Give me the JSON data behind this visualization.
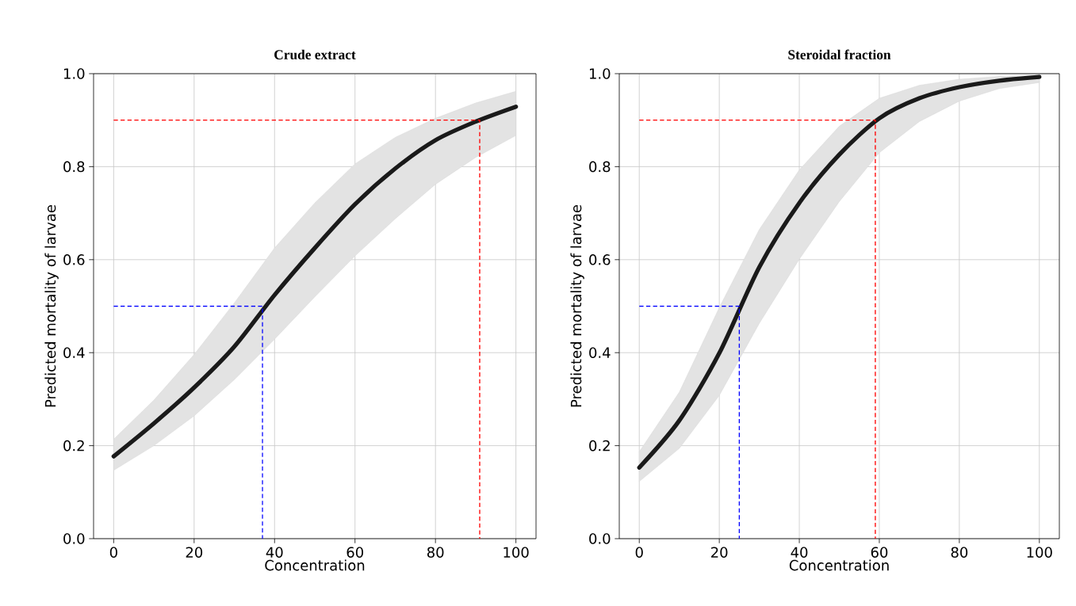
{
  "chart_data": [
    {
      "type": "line",
      "title": "Crude extract",
      "xlabel": "Concentration",
      "ylabel": "Predicted mortality of larvae",
      "xlim": [
        -5,
        105
      ],
      "ylim": [
        0,
        1
      ],
      "xticks": [
        0,
        20,
        40,
        60,
        80,
        100
      ],
      "yticks": [
        {
          "value": 0,
          "label": "0.0"
        },
        {
          "value": 0.2,
          "label": "0.2"
        },
        {
          "value": 0.4,
          "label": "0.4"
        },
        {
          "value": 0.6,
          "label": "0.6"
        },
        {
          "value": 0.8,
          "label": "0.8"
        },
        {
          "value": 1,
          "label": "1.0"
        }
      ],
      "grid": true,
      "marker": "none",
      "series": [
        {
          "color": "#1a1a1a",
          "x": [
            0,
            10,
            20,
            30,
            40,
            50,
            60,
            70,
            80,
            90,
            100
          ],
          "values": [
            0.177,
            0.248,
            0.325,
            0.413,
            0.524,
            0.625,
            0.719,
            0.796,
            0.857,
            0.897,
            0.929
          ],
          "lower": [
            0.147,
            0.2,
            0.264,
            0.342,
            0.429,
            0.52,
            0.608,
            0.688,
            0.762,
            0.82,
            0.867
          ],
          "upper": [
            0.214,
            0.298,
            0.396,
            0.507,
            0.625,
            0.722,
            0.806,
            0.863,
            0.904,
            0.937,
            0.962
          ]
        },
        {
          "color": "#0000ff",
          "line_style": "dashed",
          "x": [
            0,
            37,
            37
          ],
          "values": [
            0.5,
            0.5,
            0
          ]
        },
        {
          "color": "#ff0000",
          "line_style": "dashed",
          "x": [
            0,
            91,
            91
          ],
          "values": [
            0.9,
            0.9,
            0
          ]
        }
      ]
    },
    {
      "type": "line",
      "title": "Steroidal fraction",
      "xlabel": "Concentration",
      "ylabel": "Predicted mortality of larvae",
      "xlim": [
        -5,
        105
      ],
      "ylim": [
        0,
        1
      ],
      "xticks": [
        0,
        20,
        40,
        60,
        80,
        100
      ],
      "yticks": [
        {
          "value": 0,
          "label": "0.0"
        },
        {
          "value": 0.2,
          "label": "0.2"
        },
        {
          "value": 0.4,
          "label": "0.4"
        },
        {
          "value": 0.6,
          "label": "0.6"
        },
        {
          "value": 0.8,
          "label": "0.8"
        },
        {
          "value": 1,
          "label": "1.0"
        }
      ],
      "grid": true,
      "marker": "none",
      "series": [
        {
          "color": "#1a1a1a",
          "x": [
            0,
            10,
            20,
            30,
            40,
            50,
            60,
            70,
            80,
            90,
            100
          ],
          "values": [
            0.153,
            0.254,
            0.399,
            0.584,
            0.722,
            0.826,
            0.904,
            0.947,
            0.971,
            0.985,
            0.993
          ],
          "lower": [
            0.123,
            0.194,
            0.308,
            0.463,
            0.601,
            0.725,
            0.83,
            0.897,
            0.941,
            0.968,
            0.981
          ],
          "upper": [
            0.187,
            0.315,
            0.497,
            0.665,
            0.793,
            0.887,
            0.947,
            0.975,
            0.988,
            0.994,
            0.997
          ]
        },
        {
          "color": "#0000ff",
          "line_style": "dashed",
          "x": [
            0,
            25,
            25
          ],
          "values": [
            0.5,
            0.5,
            0
          ]
        },
        {
          "color": "#ff0000",
          "line_style": "dashed",
          "x": [
            0,
            59,
            59
          ],
          "values": [
            0.9,
            0.9,
            0
          ]
        }
      ]
    }
  ]
}
